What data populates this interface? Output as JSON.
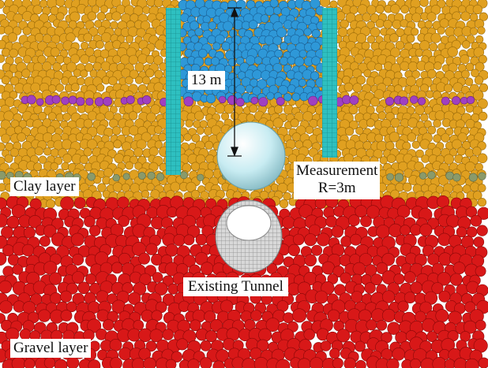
{
  "labels": {
    "depth": "13 m",
    "measurement_title": "Measurement",
    "measurement_radius": "R=3m",
    "tunnel": "Existing Tunnel",
    "clay": "Clay layer",
    "gravel": "Gravel layer"
  },
  "colors": {
    "background": "#ffffff",
    "clay_particles": "#e0a020",
    "clay_particle_edge": "#9a6a08",
    "gravel_particles": "#d81818",
    "gravel_particle_edge": "#8a0808",
    "excavation_particles": "#2e98d8",
    "excavation_particle_edge": "#1a5f95",
    "purple_band": "#a040c0",
    "grey_green_band": "#8a9a6a",
    "retaining_wall": "#2ec0c0",
    "measurement_sphere": "#c8ecf2",
    "tunnel_ring": "#bbbbbb",
    "tunnel_interior": "#ffffff"
  },
  "icons": {
    "depth_arrow": "vertical-double-arrow",
    "measurement_sphere": "sphere",
    "tunnel": "ring-cylinder"
  }
}
